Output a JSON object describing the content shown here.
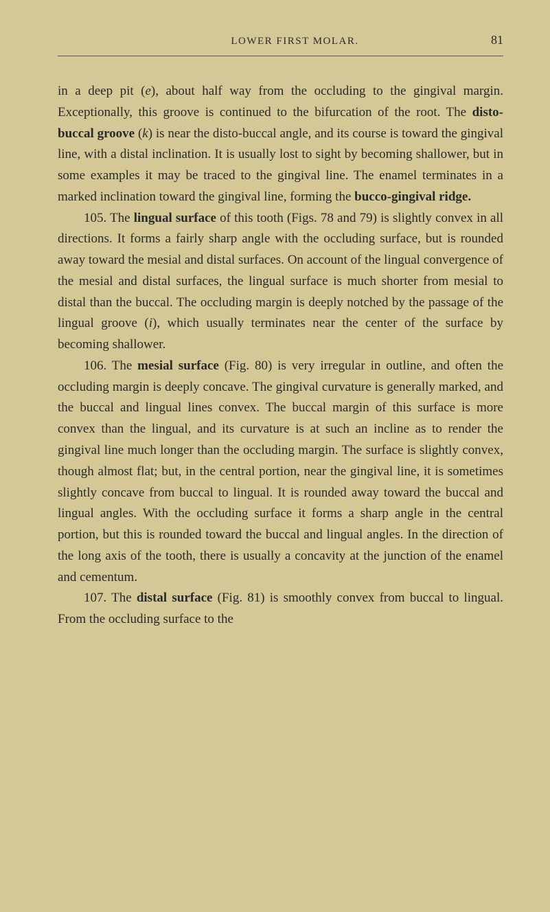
{
  "header": {
    "title": "LOWER FIRST MOLAR.",
    "page_number": "81"
  },
  "paragraphs": {
    "p0_pre": "in a deep pit (",
    "p0_e": "e",
    "p0_mid1": "), about half way from the occluding to the gingival margin. Exceptionally, this groove is continued to the bifurcation of the root. The ",
    "p0_bold1": "disto-buccal groove",
    "p0_mid2": " (",
    "p0_k": "k",
    "p0_mid3": ") is near the disto-buccal angle, and its course is toward the gingival line, with a distal inclination. It is usually lost to sight by becoming shallower, but in some examples it may be traced to the gingival line. The enamel terminates in a marked inclination toward the gingival line, forming the ",
    "p0_bold2": "bucco-gingival ridge.",
    "p1_pre": "105. The ",
    "p1_bold": "lingual surface",
    "p1_rest": " of this tooth (Figs. 78 and 79) is slightly convex in all directions. It forms a fairly sharp angle with the occluding surface, but is rounded away toward the mesial and distal surfaces. On account of the lingual convergence of the mesial and distal surfaces, the lingual surface is much shorter from mesial to distal than the buccal. The occluding margin is deeply notched by the passage of the lingual groove (",
    "p1_i": "i",
    "p1_end": "), which usually terminates near the center of the surface by becoming shallower.",
    "p2_pre": "106. The ",
    "p2_bold": "mesial surface",
    "p2_rest": " (Fig. 80) is very irregular in outline, and often the occluding margin is deeply concave. The gingival curvature is generally marked, and the buccal and lingual lines convex. The buccal margin of this surface is more convex than the lingual, and its curvature is at such an incline as to render the gingival line much longer than the occluding margin. The surface is slightly convex, though almost flat; but, in the central portion, near the gingival line, it is sometimes slightly concave from buccal to lingual. It is rounded away toward the buccal and lingual angles. With the occluding surface it forms a sharp angle in the central portion, but this is rounded toward the buccal and lingual angles. In the direction of the long axis of the tooth, there is usually a concavity at the junction of the enamel and cementum.",
    "p3_pre": "107. The ",
    "p3_bold": "distal surface",
    "p3_rest": " (Fig. 81) is smoothly convex from buccal to lingual. From the occluding surface to the"
  },
  "style": {
    "background_color": "#d4c896",
    "text_color": "#2a2a2a",
    "body_font_size": 19,
    "header_font_size": 15,
    "page_number_font_size": 18,
    "line_height": 1.62,
    "divider_color": "#555"
  }
}
